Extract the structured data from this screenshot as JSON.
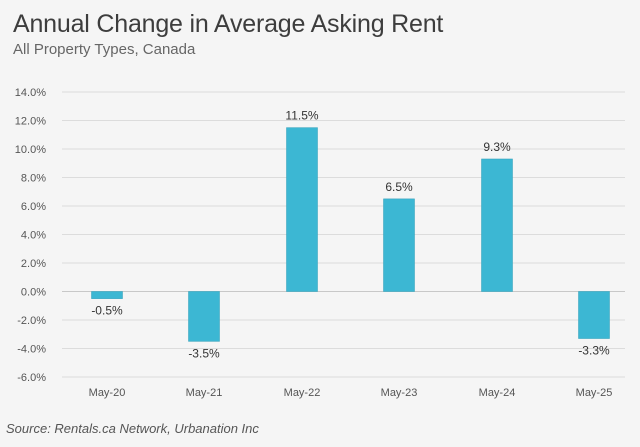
{
  "header": {
    "title": "Annual Change in Average Asking Rent",
    "subtitle": "All Property Types, Canada"
  },
  "footer": {
    "source": "Source: Rentals.ca Network, Urbanation Inc"
  },
  "colors": {
    "bar": "#3cb7d3",
    "bar_edge": "#2f9fb9",
    "grid": "#dcdcdc",
    "zero_line": "#c8c8c8",
    "background": "#f5f5f5"
  },
  "chart_data": {
    "type": "bar",
    "title": "Annual Change in Average Asking Rent",
    "subtitle": "All Property Types, Canada",
    "xlabel": "",
    "ylabel": "",
    "categories": [
      "May-20",
      "May-21",
      "May-22",
      "May-23",
      "May-24",
      "May-25"
    ],
    "values": [
      -0.5,
      -3.5,
      11.5,
      6.5,
      9.3,
      -3.3
    ],
    "data_labels": [
      "-0.5%",
      "-3.5%",
      "11.5%",
      "6.5%",
      "9.3%",
      "-3.3%"
    ],
    "ylim": [
      -6,
      14
    ],
    "yticks": [
      14,
      12,
      10,
      8,
      6,
      4,
      2,
      0,
      -2,
      -4,
      -6
    ],
    "ytick_labels": [
      "14.0%",
      "12.0%",
      "10.0%",
      "8.0%",
      "6.0%",
      "4.0%",
      "2.0%",
      "0.0%",
      "-2.0%",
      "-4.0%",
      "-6.0%"
    ],
    "grid": true,
    "legend": "none"
  }
}
